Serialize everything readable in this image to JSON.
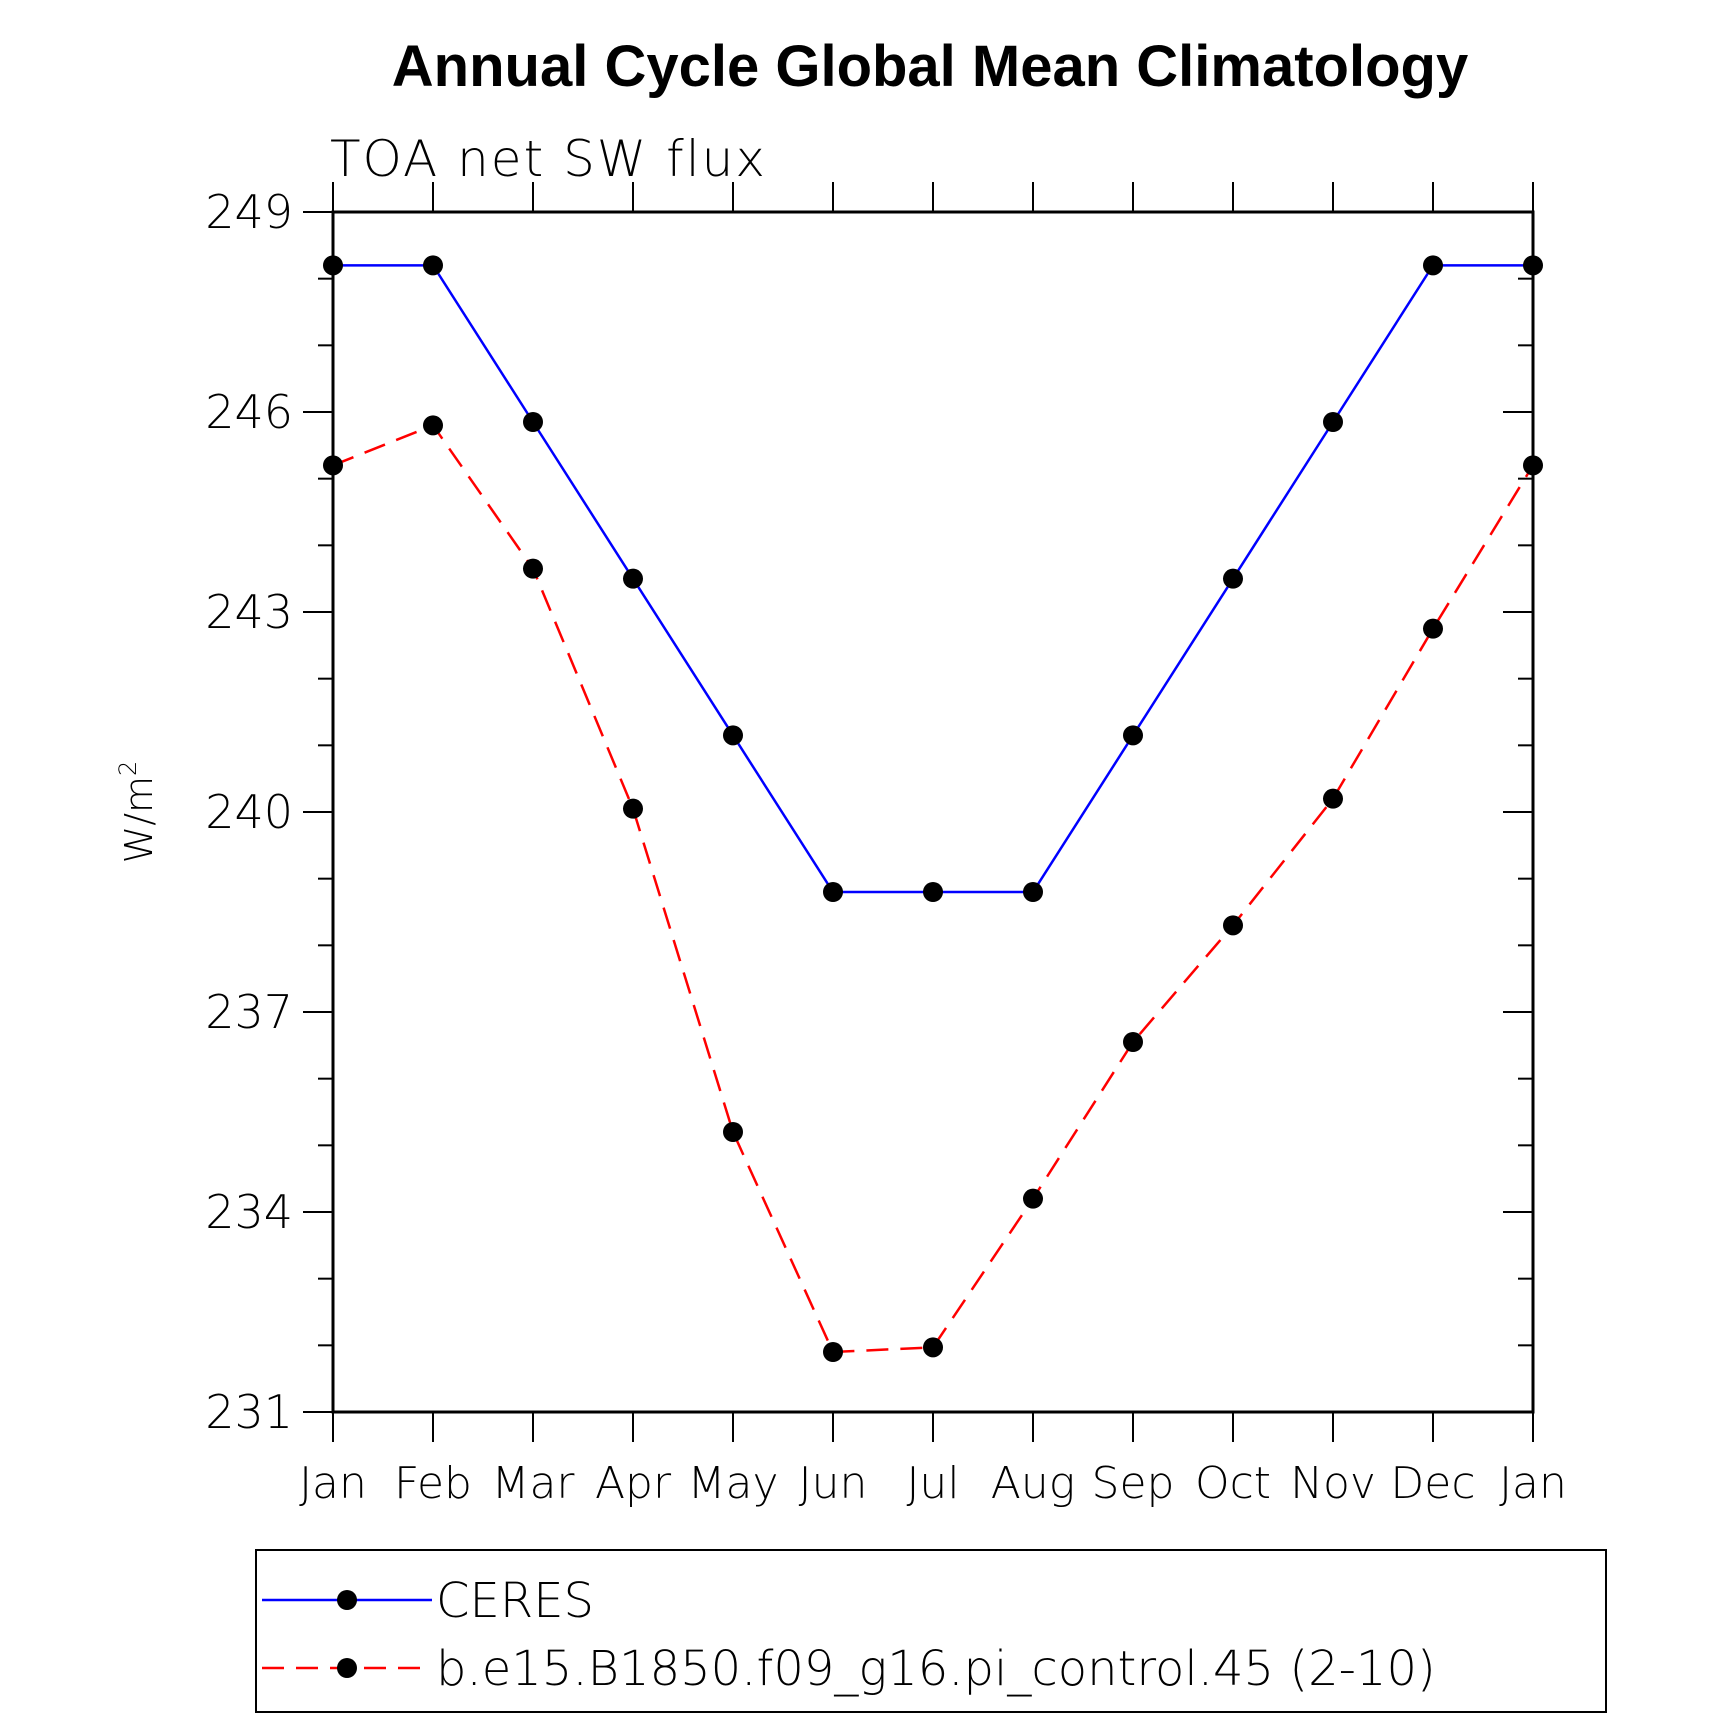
{
  "chart_data": {
    "type": "line",
    "title": "Annual Cycle Global Mean Climatology",
    "subtitle": "TOA net SW flux",
    "ylabel": "W/m",
    "ylabel_superscript": "2",
    "ylim": [
      231,
      249
    ],
    "yticks": [
      "231",
      "234",
      "237",
      "240",
      "243",
      "246",
      "249"
    ],
    "categories": [
      "Jan",
      "Feb",
      "Mar",
      "Apr",
      "May",
      "Jun",
      "Jul",
      "Aug",
      "Sep",
      "Oct",
      "Nov",
      "Dec",
      "Jan"
    ],
    "series": [
      {
        "name": "CERES",
        "color": "#0000ff",
        "dash": "solid",
        "values": [
          248.2,
          248.2,
          245.85,
          243.5,
          241.15,
          238.8,
          238.8,
          238.8,
          241.15,
          243.5,
          245.85,
          248.2,
          248.2
        ]
      },
      {
        "name": "b.e15.B1850.f09_g16.pi_control.45 (2-10)",
        "color": "#ff0000",
        "dash": "dashed",
        "values": [
          245.2,
          245.8,
          243.65,
          240.05,
          235.2,
          231.9,
          231.97,
          234.2,
          236.55,
          238.3,
          240.2,
          242.75,
          245.2
        ]
      }
    ],
    "legend_position": "bottom",
    "grid": false,
    "marker_color": "#000000"
  }
}
